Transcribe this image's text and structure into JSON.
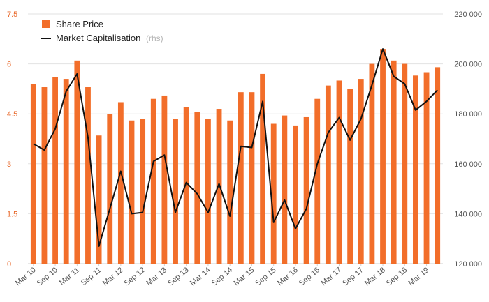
{
  "colors": {
    "bar": "#f26e2a",
    "line": "#111111",
    "grid": "#e2e2e2",
    "left_axis_text": "#e8682a",
    "right_axis_text": "#333333"
  },
  "legend": {
    "share_price": "Share Price",
    "market_cap": "Market Capitalisation",
    "market_cap_note": "(rhs)"
  },
  "chart_data": {
    "type": "bar",
    "grid": true,
    "legend_position": "top-left",
    "x_tick_labels": [
      "Mar 10",
      "Sep 10",
      "Mar 11",
      "Sep 11",
      "Mar 12",
      "Sep 12",
      "Mar 13",
      "Sep 13",
      "Mar 14",
      "Sep 14",
      "Mar 15",
      "Sep 15",
      "Mar 16",
      "Sep 16",
      "Mar 17",
      "Sep 17",
      "Mar 18",
      "Sep 18",
      "Mar 19"
    ],
    "y_left": {
      "range": [
        0,
        7.5
      ],
      "ticks": [
        0,
        1.5,
        3,
        4.5,
        6,
        7.5
      ],
      "tick_labels": [
        "0",
        "1.5",
        "3",
        "4.5",
        "6",
        "7.5"
      ]
    },
    "y_right": {
      "range": [
        120000,
        220000
      ],
      "ticks": [
        120000,
        140000,
        160000,
        180000,
        200000,
        220000
      ],
      "tick_labels": [
        "120 000",
        "140 000",
        "160 000",
        "180 000",
        "200 000",
        "220 000"
      ]
    },
    "series": [
      {
        "name": "Share Price",
        "type": "bar",
        "axis": "left",
        "values": [
          5.4,
          5.3,
          5.6,
          5.55,
          6.1,
          5.3,
          3.85,
          4.5,
          4.85,
          4.3,
          4.35,
          4.95,
          5.05,
          4.35,
          4.7,
          4.55,
          4.35,
          4.65,
          4.3,
          5.15,
          5.15,
          5.7,
          4.2,
          4.45,
          4.15,
          4.4,
          4.95,
          5.35,
          5.5,
          5.25,
          5.55,
          6.0,
          6.45,
          6.1,
          6.0,
          5.65,
          5.75,
          5.9
        ]
      },
      {
        "name": "Market Capitalisation",
        "type": "line",
        "axis": "right",
        "values": [
          168000,
          165500,
          174000,
          189000,
          196000,
          170500,
          127000,
          142000,
          157000,
          140000,
          140500,
          161000,
          163500,
          140500,
          152500,
          148000,
          140500,
          152000,
          139000,
          167000,
          166500,
          185000,
          136500,
          145500,
          134000,
          142000,
          160000,
          172500,
          178500,
          169500,
          178000,
          191500,
          206000,
          195000,
          192000,
          181500,
          185000,
          189500
        ]
      }
    ]
  }
}
